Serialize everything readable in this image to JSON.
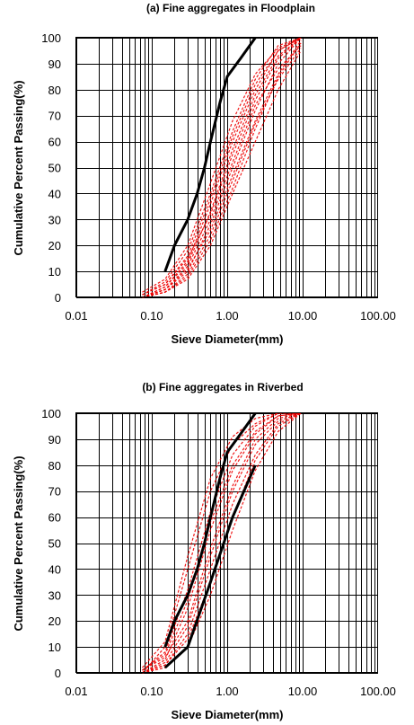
{
  "chart_data": [
    {
      "type": "line",
      "title": "(a) Fine aggregates in Floodplain",
      "xlabel": "Sieve Diameter(mm)",
      "ylabel": "Cumulative Percent Passing(%)",
      "xscale": "log",
      "xlim": [
        0.01,
        100
      ],
      "ylim": [
        0,
        100
      ],
      "xtick_labels": [
        "0.01",
        "0.10",
        "1.00",
        "10.00",
        "100.00"
      ],
      "ytick_labels": [
        "0",
        "10",
        "20",
        "30",
        "40",
        "50",
        "60",
        "70",
        "80",
        "90",
        "100"
      ],
      "grid": true,
      "envelope_color": "#000000",
      "samples_color": "#ee0000",
      "envelope": [
        {
          "x": [
            0.15,
            0.2,
            0.3,
            0.4,
            0.5,
            0.6,
            0.8,
            1.0,
            1.5,
            2.36
          ],
          "y": [
            10,
            20,
            30,
            40,
            50,
            60,
            75,
            85,
            92,
            100
          ]
        }
      ],
      "samples": [
        {
          "x": [
            0.075,
            0.15,
            0.3,
            0.6,
            1.18,
            2.36,
            4.75,
            9.5
          ],
          "y": [
            0,
            4,
            14,
            36,
            60,
            80,
            95,
            100
          ]
        },
        {
          "x": [
            0.075,
            0.15,
            0.3,
            0.6,
            1.18,
            2.36,
            4.75,
            9.5
          ],
          "y": [
            0,
            3,
            10,
            28,
            50,
            72,
            90,
            100
          ]
        },
        {
          "x": [
            0.075,
            0.15,
            0.3,
            0.6,
            1.18,
            2.36,
            4.75,
            9.5
          ],
          "y": [
            1,
            6,
            18,
            40,
            64,
            84,
            97,
            100
          ]
        },
        {
          "x": [
            0.075,
            0.15,
            0.3,
            0.6,
            1.18,
            2.36,
            4.75,
            9.5
          ],
          "y": [
            0,
            2,
            8,
            22,
            42,
            65,
            85,
            98
          ]
        },
        {
          "x": [
            0.075,
            0.15,
            0.3,
            0.6,
            1.18,
            2.36,
            4.75,
            9.5
          ],
          "y": [
            1,
            5,
            15,
            32,
            55,
            76,
            92,
            100
          ]
        },
        {
          "x": [
            0.075,
            0.15,
            0.3,
            0.6,
            1.18,
            2.36,
            4.75,
            9.5
          ],
          "y": [
            0,
            3,
            12,
            30,
            52,
            74,
            88,
            97
          ]
        },
        {
          "x": [
            0.075,
            0.15,
            0.3,
            0.6,
            1.18,
            2.36,
            4.75,
            9.5
          ],
          "y": [
            2,
            7,
            20,
            44,
            68,
            86,
            96,
            100
          ]
        },
        {
          "x": [
            0.075,
            0.15,
            0.3,
            0.6,
            1.18,
            2.36,
            4.75,
            9.5
          ],
          "y": [
            0,
            2,
            7,
            20,
            40,
            60,
            80,
            95
          ]
        },
        {
          "x": [
            0.075,
            0.15,
            0.3,
            0.6,
            1.18,
            2.36,
            4.75,
            9.5
          ],
          "y": [
            0,
            4,
            13,
            33,
            57,
            78,
            93,
            100
          ]
        },
        {
          "x": [
            0.075,
            0.15,
            0.3,
            0.6,
            1.18,
            2.36,
            4.75,
            9.5
          ],
          "y": [
            1,
            5,
            16,
            38,
            62,
            82,
            95,
            100
          ]
        },
        {
          "x": [
            0.075,
            0.15,
            0.3,
            0.6,
            1.18,
            2.36,
            4.75,
            9.5
          ],
          "y": [
            0,
            3,
            11,
            26,
            47,
            68,
            86,
            99
          ]
        },
        {
          "x": [
            0.075,
            0.15,
            0.3,
            0.6,
            1.18,
            2.36,
            4.75,
            9.5
          ],
          "y": [
            0,
            2,
            9,
            24,
            45,
            67,
            84,
            96
          ]
        }
      ]
    },
    {
      "type": "line",
      "title": "(b) Fine aggregates in Riverbed",
      "xlabel": "Sieve Diameter(mm)",
      "ylabel": "Cumulative Percent Passing(%)",
      "xscale": "log",
      "xlim": [
        0.01,
        100
      ],
      "ylim": [
        0,
        100
      ],
      "xtick_labels": [
        "0.01",
        "0.10",
        "1.00",
        "10.00",
        "100.00"
      ],
      "ytick_labels": [
        "0",
        "10",
        "20",
        "30",
        "40",
        "50",
        "60",
        "70",
        "80",
        "90",
        "100"
      ],
      "grid": true,
      "envelope_color": "#000000",
      "samples_color": "#ee0000",
      "envelope": [
        {
          "x": [
            0.15,
            0.2,
            0.3,
            0.4,
            0.5,
            0.6,
            0.8,
            1.0,
            1.5,
            2.36
          ],
          "y": [
            10,
            20,
            30,
            40,
            50,
            60,
            75,
            85,
            92,
            100
          ]
        },
        {
          "x": [
            0.15,
            0.3,
            0.6,
            1.18,
            2.36
          ],
          "y": [
            2,
            10,
            35,
            60,
            80
          ]
        }
      ],
      "samples": [
        {
          "x": [
            0.075,
            0.15,
            0.3,
            0.6,
            1.18,
            2.36,
            4.75,
            9.5
          ],
          "y": [
            0,
            10,
            40,
            70,
            88,
            96,
            100,
            100
          ]
        },
        {
          "x": [
            0.075,
            0.15,
            0.3,
            0.6,
            1.18,
            2.36,
            4.75,
            9.5
          ],
          "y": [
            0,
            5,
            25,
            55,
            78,
            92,
            99,
            100
          ]
        },
        {
          "x": [
            0.075,
            0.15,
            0.3,
            0.6,
            1.18,
            2.36,
            4.75,
            9.5
          ],
          "y": [
            1,
            8,
            32,
            62,
            84,
            95,
            100,
            100
          ]
        },
        {
          "x": [
            0.075,
            0.15,
            0.3,
            0.6,
            1.18,
            2.36,
            4.75,
            9.5
          ],
          "y": [
            0,
            3,
            15,
            40,
            65,
            84,
            96,
            100
          ]
        },
        {
          "x": [
            0.075,
            0.15,
            0.3,
            0.6,
            1.18,
            2.36,
            4.75,
            9.5
          ],
          "y": [
            0,
            2,
            10,
            30,
            55,
            78,
            93,
            100
          ]
        },
        {
          "x": [
            0.075,
            0.15,
            0.3,
            0.6,
            1.18,
            2.36,
            4.75,
            9.5
          ],
          "y": [
            1,
            6,
            20,
            48,
            72,
            90,
            98,
            100
          ]
        },
        {
          "x": [
            0.075,
            0.15,
            0.3,
            0.6,
            1.18,
            2.36,
            4.75,
            9.5
          ],
          "y": [
            2,
            12,
            45,
            75,
            91,
            98,
            100,
            100
          ]
        },
        {
          "x": [
            0.075,
            0.15,
            0.3,
            0.6,
            1.18,
            2.36,
            4.75,
            9.5
          ],
          "y": [
            0,
            4,
            18,
            45,
            70,
            88,
            97,
            100
          ]
        },
        {
          "x": [
            0.075,
            0.15,
            0.3,
            0.6,
            1.18,
            2.36,
            4.75,
            9.5
          ],
          "y": [
            0,
            3,
            13,
            35,
            60,
            82,
            95,
            100
          ]
        },
        {
          "x": [
            0.075,
            0.15,
            0.3,
            0.6,
            1.18,
            2.36,
            4.75,
            9.5
          ],
          "y": [
            1,
            7,
            28,
            58,
            80,
            93,
            99,
            100
          ]
        }
      ]
    }
  ]
}
